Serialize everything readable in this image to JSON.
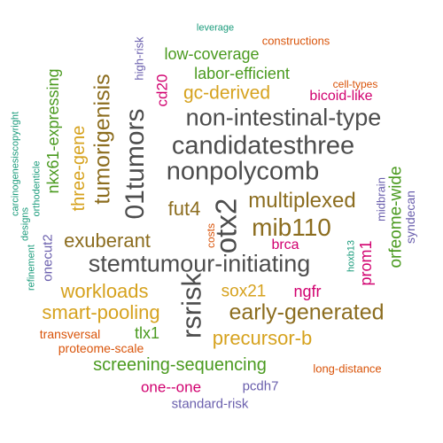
{
  "colors": {
    "gray": "#4d4d4d",
    "brown": "#8c6d1f",
    "gold": "#d6a21e",
    "green": "#4a9a1f",
    "magenta": "#d1006f",
    "orange": "#d9540a",
    "purple": "#6a5fad",
    "teal": "#1a9b7b"
  },
  "words": [
    {
      "text": "stemtumour-initiating",
      "color": "gray"
    },
    {
      "text": "non-intestinal-type",
      "color": "gray"
    },
    {
      "text": "candidatesthree",
      "color": "gray"
    },
    {
      "text": "nonpolycomb",
      "color": "gray"
    },
    {
      "text": "early-generated",
      "color": "brown"
    },
    {
      "text": "01tumors",
      "color": "gray"
    },
    {
      "text": "otx2",
      "color": "gray"
    },
    {
      "text": "rsrisk",
      "color": "gray"
    },
    {
      "text": "mib110",
      "color": "brown"
    },
    {
      "text": "multiplexed",
      "color": "brown"
    },
    {
      "text": "tumorigenisis",
      "color": "brown"
    },
    {
      "text": "exuberant",
      "color": "brown"
    },
    {
      "text": "fut4",
      "color": "brown"
    },
    {
      "text": "smart-pooling",
      "color": "gold"
    },
    {
      "text": "workloads",
      "color": "gold"
    },
    {
      "text": "precursor-b",
      "color": "gold"
    },
    {
      "text": "gc-derived",
      "color": "gold"
    },
    {
      "text": "screening-sequencing",
      "color": "green"
    },
    {
      "text": "three-gene",
      "color": "gold"
    },
    {
      "text": "labor-efficient",
      "color": "green"
    },
    {
      "text": "low-coverage",
      "color": "green"
    },
    {
      "text": "nkx61-expressing",
      "color": "green"
    },
    {
      "text": "orfeome-wide",
      "color": "green"
    },
    {
      "text": "sox21",
      "color": "gold"
    },
    {
      "text": "ngfr",
      "color": "magenta"
    },
    {
      "text": "tlx1",
      "color": "green"
    },
    {
      "text": "one--one",
      "color": "magenta"
    },
    {
      "text": "prom1",
      "color": "magenta"
    },
    {
      "text": "cd20",
      "color": "magenta"
    },
    {
      "text": "bicoid-like",
      "color": "magenta"
    },
    {
      "text": "brca",
      "color": "magenta"
    },
    {
      "text": "pcdh7",
      "color": "purple"
    },
    {
      "text": "standard-risk",
      "color": "purple"
    },
    {
      "text": "onecut2",
      "color": "purple"
    },
    {
      "text": "midbrain",
      "color": "purple"
    },
    {
      "text": "syndecan",
      "color": "purple"
    },
    {
      "text": "high-risk",
      "color": "purple"
    },
    {
      "text": "transversal",
      "color": "orange"
    },
    {
      "text": "proteome-scale",
      "color": "orange"
    },
    {
      "text": "long-distance",
      "color": "orange"
    },
    {
      "text": "constructions",
      "color": "orange"
    },
    {
      "text": "cell-types",
      "color": "orange"
    },
    {
      "text": "costs",
      "color": "orange"
    },
    {
      "text": "leverage",
      "color": "teal"
    },
    {
      "text": "hoxb13",
      "color": "teal"
    },
    {
      "text": "refinement",
      "color": "teal"
    },
    {
      "text": "designs",
      "color": "teal"
    },
    {
      "text": "orthodenticle",
      "color": "teal"
    },
    {
      "text": "carcinogenesiscopyright",
      "color": "teal"
    }
  ]
}
